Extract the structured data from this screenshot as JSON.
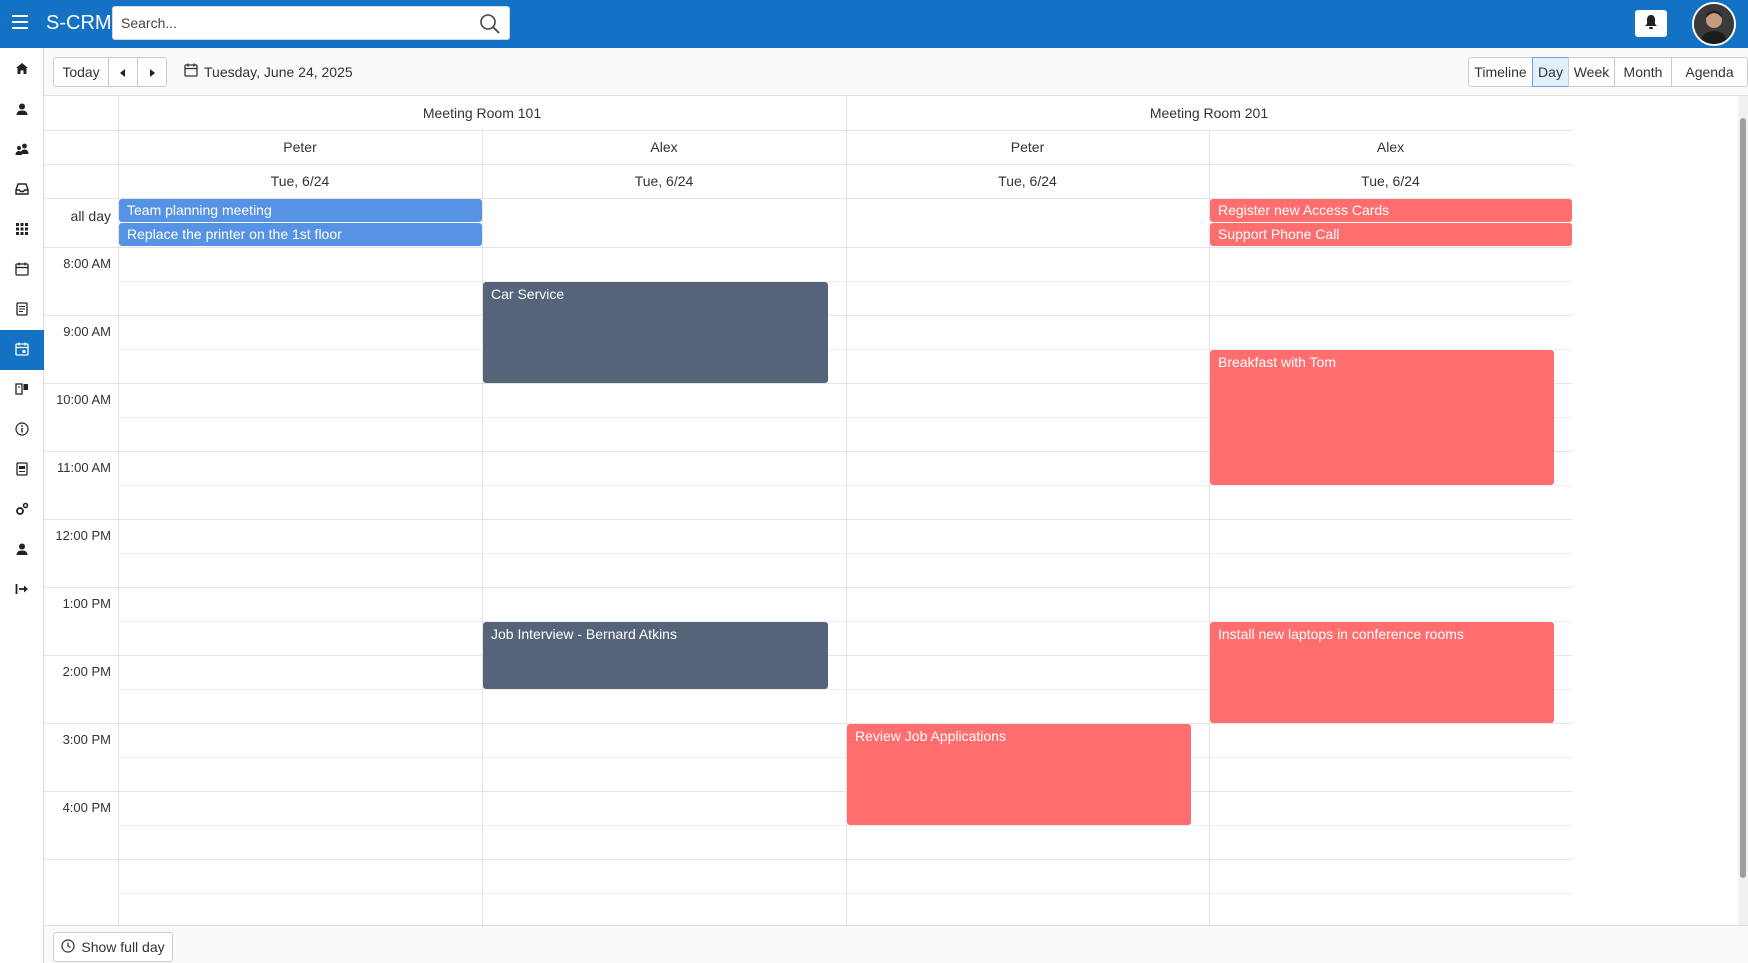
{
  "app": {
    "title": "S-CRM"
  },
  "search": {
    "placeholder": "Search..."
  },
  "sidebar": {
    "items": [
      {
        "name": "home-icon"
      },
      {
        "name": "contact-icon"
      },
      {
        "name": "groups-icon"
      },
      {
        "name": "inbox-icon"
      },
      {
        "name": "apps-grid-icon"
      },
      {
        "name": "calendar-icon"
      },
      {
        "name": "notes-icon"
      },
      {
        "name": "scheduler-icon",
        "active": true
      },
      {
        "name": "kanban-icon"
      },
      {
        "name": "info-icon"
      },
      {
        "name": "document-icon"
      },
      {
        "name": "settings-icon"
      },
      {
        "name": "user-icon"
      },
      {
        "name": "logout-icon"
      }
    ]
  },
  "toolbar": {
    "today_label": "Today",
    "date_label": "Tuesday, June 24, 2025",
    "views": [
      "Timeline",
      "Day",
      "Week",
      "Month",
      "Agenda"
    ],
    "active_view": "Day"
  },
  "scheduler": {
    "rooms": [
      "Meeting Room 101",
      "Meeting Room 201"
    ],
    "columns": [
      {
        "room": "Meeting Room 101",
        "person": "Peter",
        "date": "Tue, 6/24"
      },
      {
        "room": "Meeting Room 101",
        "person": "Alex",
        "date": "Tue, 6/24"
      },
      {
        "room": "Meeting Room 201",
        "person": "Peter",
        "date": "Tue, 6/24"
      },
      {
        "room": "Meeting Room 201",
        "person": "Alex",
        "date": "Tue, 6/24"
      }
    ],
    "allday_label": "all day",
    "time_labels": [
      "8:00 AM",
      "9:00 AM",
      "10:00 AM",
      "11:00 AM",
      "12:00 PM",
      "1:00 PM",
      "2:00 PM",
      "3:00 PM",
      "4:00 PM"
    ],
    "allday_events": [
      {
        "title": "Team planning meeting",
        "column": 0,
        "color": "#5693e4"
      },
      {
        "title": "Replace the printer on the 1st floor",
        "column": 0,
        "color": "#5693e4"
      },
      {
        "title": "Register new Access Cards",
        "column": 3,
        "color": "#ff6e6e"
      },
      {
        "title": "Support Phone Call",
        "column": 3,
        "color": "#ff6e6e"
      }
    ],
    "events": [
      {
        "title": "Car Service",
        "column": 1,
        "start": "8:30 AM",
        "end": "10:00 AM",
        "color": "#566479"
      },
      {
        "title": "Breakfast with Tom",
        "column": 3,
        "start": "9:30 AM",
        "end": "11:30 AM",
        "color": "#ff6e6e"
      },
      {
        "title": "Job Interview - Bernard Atkins",
        "column": 1,
        "start": "1:30 PM",
        "end": "2:30 PM",
        "color": "#566479"
      },
      {
        "title": "Install new laptops in conference rooms",
        "column": 3,
        "start": "1:30 PM",
        "end": "3:00 PM",
        "color": "#ff6e6e"
      },
      {
        "title": "Review Job Applications",
        "column": 2,
        "start": "3:00 PM",
        "end": "4:30 PM",
        "color": "#ff6e6e"
      }
    ]
  },
  "footer": {
    "show_full_day_label": "Show full day"
  }
}
